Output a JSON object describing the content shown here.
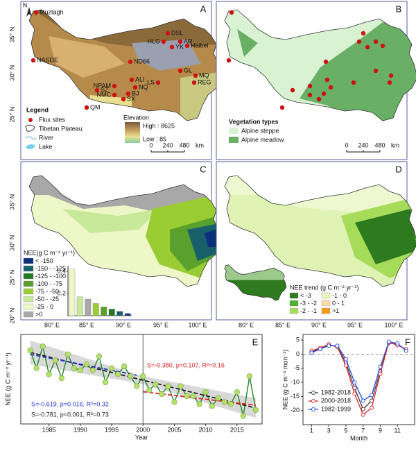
{
  "panel_a": {
    "label": "A",
    "north": "N",
    "lat_labels": [
      "35° N",
      "30° N",
      "25° N"
    ],
    "sites": [
      "Muztagh",
      "DSL",
      "HLG",
      "AR",
      "YK",
      "Haibei",
      "NASDE",
      "ND66",
      "GL",
      "MQ",
      "REG",
      "LS",
      "ALI",
      "NPAM",
      "NQ",
      "SZ",
      "BJ",
      "NMC",
      "SX",
      "QM"
    ],
    "legend": {
      "title": "Legend",
      "items": [
        "Flux sites",
        "Tibetan Plateau",
        "River",
        "Lake"
      ]
    },
    "elevation": {
      "title": "Elevation",
      "high": "High : 8625",
      "low": "Low : 85"
    },
    "scale": [
      "0",
      "240",
      "480",
      "km"
    ]
  },
  "panel_b": {
    "label": "B",
    "legend": {
      "title": "Vegetation types",
      "items": [
        {
          "name": "Alpine steppe",
          "color": "#d8f2d2"
        },
        {
          "name": "Alpine meadow",
          "color": "#6aaf66"
        }
      ]
    },
    "scale": [
      "0",
      "240",
      "480",
      "km"
    ]
  },
  "panel_c": {
    "label": "C",
    "lat_labels": [
      "35° N",
      "30° N",
      "25° N",
      "20° N"
    ],
    "lon_labels": [
      "80° E",
      "85° E",
      "90° E",
      "95° E",
      "100° E"
    ],
    "legend": {
      "title": "NEE(g C m⁻² yr⁻¹)",
      "items": [
        {
          "name": "< -150",
          "color": "#0b2f7a"
        },
        {
          "name": "-150 - -125",
          "color": "#17606a"
        },
        {
          "name": "-125 - -100",
          "color": "#1f7a1f"
        },
        {
          "name": "-100 - -75",
          "color": "#5aa02c"
        },
        {
          "name": "-75 - -50",
          "color": "#9acd32"
        },
        {
          "name": "-50 - -25",
          "color": "#c8e89a"
        },
        {
          "name": "-25 - 0",
          "color": "#eef7c8"
        },
        {
          "name": ">0",
          "color": "#a8a8a8"
        }
      ]
    }
  },
  "panel_d": {
    "label": "D",
    "lon_labels": [
      "80° E",
      "85° E",
      "90° E",
      "95° E",
      "100° E"
    ],
    "legend": {
      "title": "NEE trend (g C m⁻² yr⁻¹)",
      "items": [
        {
          "name": "< -3",
          "color": "#2d7a1f"
        },
        {
          "name": "-1 - 0",
          "color": "#e6f5b8"
        },
        {
          "name": "-3 - -2",
          "color": "#4caf2f"
        },
        {
          "name": "0 - 1",
          "color": "#fbd9a5"
        },
        {
          "name": "-2 - -1",
          "color": "#a6dc5a"
        },
        {
          "name": ">1",
          "color": "#f39a1a"
        }
      ]
    }
  },
  "chart_data": [
    {
      "type": "line",
      "title": "E",
      "xlabel": "Year",
      "ylabel": "NEE (g C m⁻² yr⁻¹)",
      "x": [
        1982,
        1983,
        1984,
        1985,
        1986,
        1987,
        1988,
        1989,
        1990,
        1991,
        1992,
        1993,
        1994,
        1995,
        1996,
        1997,
        1998,
        1999,
        2000,
        2001,
        2002,
        2003,
        2004,
        2005,
        2006,
        2007,
        2008,
        2009,
        2010,
        2011,
        2012,
        2013,
        2014,
        2015,
        2016,
        2017,
        2018
      ],
      "values": [
        -20,
        -29,
        -18,
        -32,
        -25,
        -34,
        -22,
        -29,
        -30,
        -27,
        -30,
        -23,
        -36,
        -29,
        -32,
        -28,
        -33,
        -38,
        -33,
        -40,
        -37,
        -42,
        -38,
        -46,
        -38,
        -43,
        -43,
        -47,
        -41,
        -48,
        -44,
        -46,
        -47,
        -41,
        -53,
        -33,
        -50
      ],
      "color": "#2e8b2e",
      "marker_color": "#b5e06a",
      "xlim": [
        1980.5,
        2019
      ],
      "xticks": [
        1985,
        1990,
        1995,
        2000,
        2005,
        2010,
        2015
      ],
      "ylim": [
        -57,
        -12
      ],
      "divider": 2000,
      "band": {
        "x": [
          1982,
          2000,
          2018
        ],
        "lower": [
          -27,
          -37,
          -54
        ],
        "upper": [
          -15,
          -33,
          -44
        ],
        "color": "#cfcfcf"
      },
      "trends": [
        {
          "x": [
            1982,
            2018
          ],
          "values": [
            -21,
            -49
          ],
          "color": "#222222",
          "annotation": "S=-0.781, p<0.001, R²=0.73"
        },
        {
          "x": [
            1982,
            1999
          ],
          "values": [
            -22,
            -32.5
          ],
          "color": "#2233cc",
          "annotation": "S=-0.619, p=0.016, R²=0.32"
        },
        {
          "x": [
            2000,
            2018
          ],
          "values": [
            -40.8,
            -47.6
          ],
          "color": "#e02020",
          "annotation": "S=-0.380, p=0.107, R²=0.16"
        }
      ]
    },
    {
      "type": "line",
      "title": "F",
      "xlabel": "Month",
      "ylabel": "NEE (g C m⁻² mon⁻¹)",
      "x": [
        1,
        2,
        3,
        4,
        5,
        6,
        7,
        8,
        9,
        10,
        11,
        12
      ],
      "xlim": [
        0,
        13
      ],
      "xticks": [
        1,
        3,
        5,
        7,
        9,
        11
      ],
      "ylim": [
        -25,
        7
      ],
      "yticks": [
        5,
        0,
        -5,
        -10,
        -15,
        -20
      ],
      "reference_line": 0,
      "series": [
        {
          "name": "1982-2018",
          "color": "#444444",
          "values": [
            0.8,
            2,
            3.2,
            2.7,
            -3,
            -12,
            -19.5,
            -16.5,
            -6,
            4,
            3.5,
            1.5
          ]
        },
        {
          "name": "2000-2018",
          "color": "#e03030",
          "values": [
            1.2,
            2.2,
            3.5,
            2.5,
            -4,
            -14,
            -21.5,
            -19,
            -7,
            4.2,
            3.2,
            1.8
          ]
        },
        {
          "name": "1982-1999",
          "color": "#3050e0",
          "values": [
            0.5,
            1.8,
            3,
            3,
            -1.8,
            -10,
            -16.5,
            -14.5,
            -4.5,
            4.4,
            3.8,
            1.2
          ]
        }
      ]
    },
    {
      "type": "bar",
      "categories": [
        null,
        null,
        null,
        null,
        null,
        null,
        null,
        null
      ],
      "values": [
        0.42,
        0.17,
        0.15,
        0.11,
        0.08,
        0.06,
        0.04,
        0.02
      ],
      "colors": [
        "#eef7c8",
        "#c8e89a",
        "#a8a8a8",
        "#9acd32",
        "#5aa02c",
        "#1f7a1f",
        "#17606a",
        "#0b2f7a"
      ],
      "ylim": [
        0,
        0.45
      ],
      "yticks": [
        0.2,
        0.4
      ]
    }
  ]
}
